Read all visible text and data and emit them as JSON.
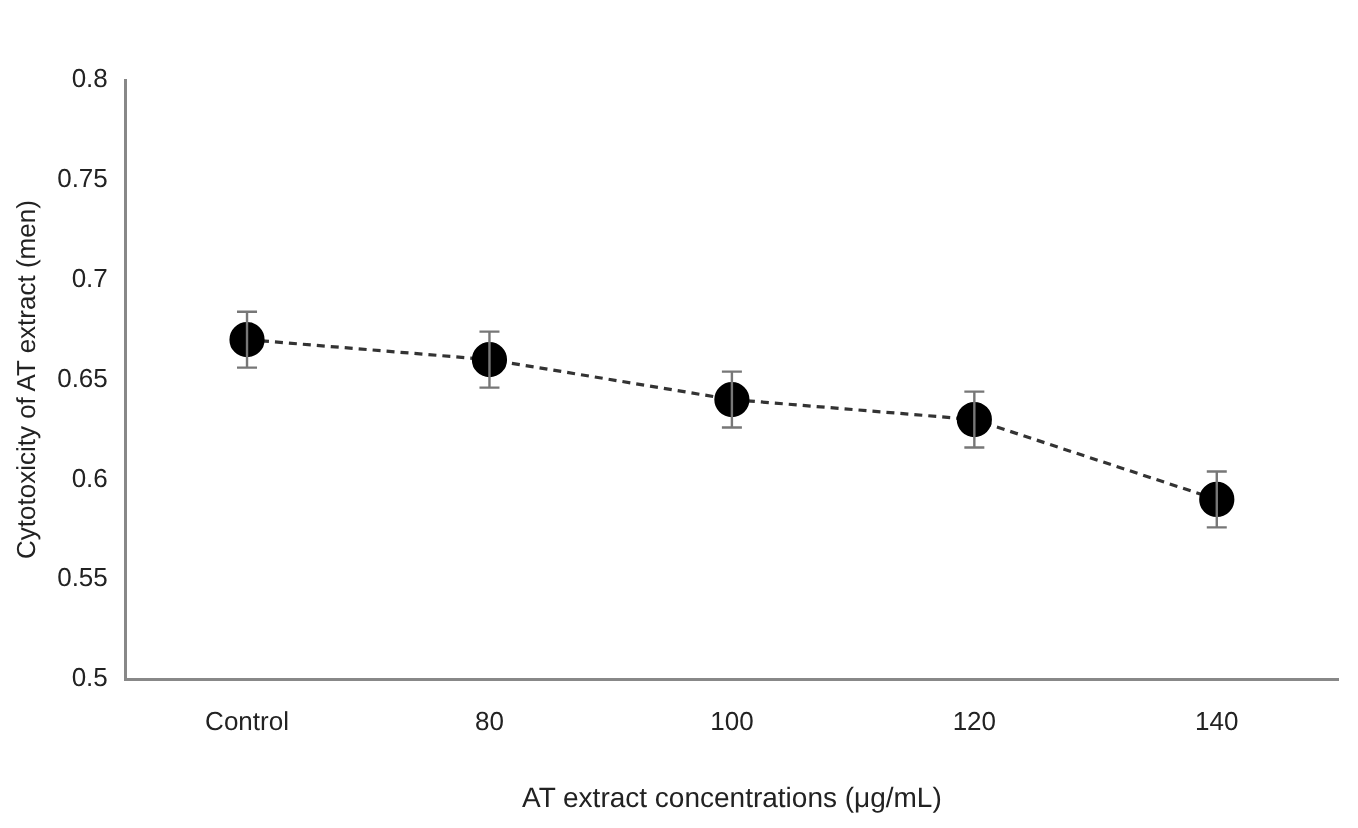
{
  "chart_data": {
    "type": "line",
    "xlabel": "AT extract concentrations (μg/mL)",
    "ylabel": "Cytotoxicity of AT extract (men)",
    "categories": [
      "Control",
      "80",
      "100",
      "120",
      "140"
    ],
    "values": [
      0.67,
      0.66,
      0.64,
      0.63,
      0.59
    ],
    "errors": [
      0.014,
      0.014,
      0.014,
      0.014,
      0.014
    ],
    "color": "#000000",
    "marker": "circle",
    "line_style": "dashed",
    "ylim": [
      0.5,
      0.8
    ],
    "yticks": [
      0.5,
      0.55,
      0.6,
      0.65,
      0.7,
      0.75,
      0.8
    ],
    "grid": false,
    "legend": false
  }
}
